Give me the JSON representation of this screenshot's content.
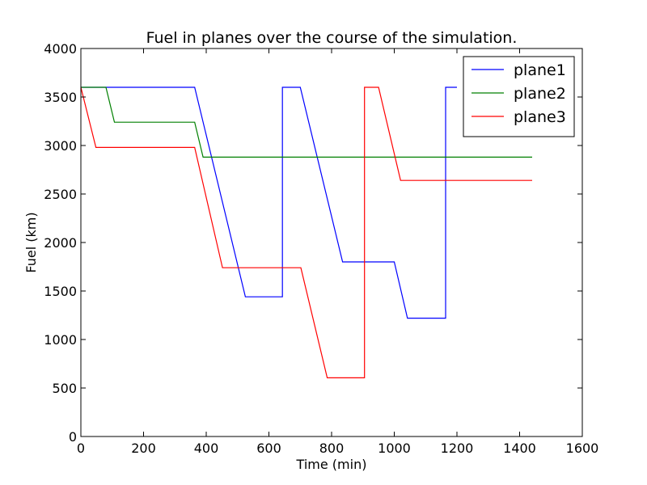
{
  "chart_data": {
    "type": "line",
    "title": "Fuel in planes over the course of the simulation.",
    "xlabel": "Time (min)",
    "ylabel": "Fuel (km)",
    "xlim": [
      0,
      1600
    ],
    "ylim": [
      0,
      4000
    ],
    "xticks": [
      0,
      200,
      400,
      600,
      800,
      1000,
      1200,
      1400,
      1600
    ],
    "yticks": [
      0,
      500,
      1000,
      1500,
      2000,
      2500,
      3000,
      3500,
      4000
    ],
    "grid": false,
    "legend_position": "top-right",
    "series": [
      {
        "name": "plane1",
        "color": "#0000ff",
        "points": [
          [
            0,
            3600
          ],
          [
            363,
            3600
          ],
          [
            525,
            1440
          ],
          [
            643,
            1440
          ],
          [
            643,
            3600
          ],
          [
            700,
            3600
          ],
          [
            835,
            1800
          ],
          [
            1000,
            1800
          ],
          [
            1042,
            1220
          ],
          [
            1164,
            1220
          ],
          [
            1164,
            3600
          ],
          [
            1200,
            3600
          ]
        ]
      },
      {
        "name": "plane2",
        "color": "#008000",
        "points": [
          [
            0,
            3600
          ],
          [
            80,
            3600
          ],
          [
            107,
            3240
          ],
          [
            363,
            3240
          ],
          [
            390,
            2880
          ],
          [
            1440,
            2880
          ]
        ]
      },
      {
        "name": "plane3",
        "color": "#ff0000",
        "points": [
          [
            0,
            3600
          ],
          [
            48,
            2980
          ],
          [
            363,
            2980
          ],
          [
            452,
            1740
          ],
          [
            702,
            1740
          ],
          [
            786,
            605
          ],
          [
            905,
            605
          ],
          [
            905,
            3600
          ],
          [
            950,
            3600
          ],
          [
            1020,
            2640
          ],
          [
            1440,
            2640
          ]
        ]
      }
    ]
  }
}
